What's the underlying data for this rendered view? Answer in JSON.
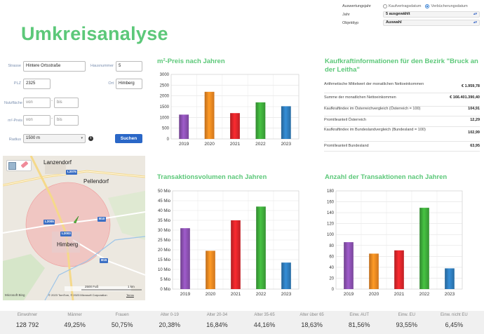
{
  "filters": {
    "auswertungsjahr_label": "Auswertungsjahr",
    "radio_kaufvertragsdatum": "Kaufvertragsdatum",
    "radio_verbuecherungsdatum": "Verbücherungsdatum",
    "jahr_label": "Jahr",
    "jahr_value": "5 ausgewählt",
    "objekttyp_label": "Objekttyp",
    "objekttyp_value": "Auswahl"
  },
  "page_title": "Umkreisanalyse",
  "form": {
    "strasse_label": "Strasse",
    "strasse_value": "Hintere Ortsstraße",
    "hausnummer_label": "Hausnummer",
    "hausnummer_value": "5",
    "plz_label": "PLZ",
    "plz_value": "2325",
    "ort_label": "Ort",
    "ort_value": "Himberg",
    "nutzflaeche_label": "Nutzfläche",
    "m2preis_label": "m²-Preis",
    "von_placeholder": "von",
    "bis_placeholder": "bis",
    "radius_label": "Radius",
    "radius_value": "1500 m",
    "search_label": "Suchen"
  },
  "map": {
    "places": [
      "Lanzendorf",
      "Pellendorf",
      "Himberg"
    ],
    "road_labels": [
      "L2075",
      "L2005",
      "L2003",
      "B10",
      "B15"
    ],
    "scale_left": "2500 Fuß",
    "scale_right": "1 km",
    "copyright": "© 2023 TomTom, © 2023 Microsoft Corporation",
    "terms": "Terms",
    "provider": "Microsoft Bing"
  },
  "titles": {
    "m2_preis": "m²-Preis nach Jahren",
    "kaufkraft": "Kaufkraftinformationen für den Bezirk \"Bruck an der Leitha\"",
    "transaktionsvolumen": "Transaktionsvolumen nach Jahren",
    "anzahl": "Anzahl der Transaktionen nach Jahren"
  },
  "kaufkraft": [
    {
      "label": "Arithmetische Mittelwert der monatlichen Nettoeinkommen",
      "value": "€ 1.959,78"
    },
    {
      "label": "Summe der monatlichen Nettoeinkommen",
      "value": "€ 166.401.390,40"
    },
    {
      "label": "Kaufkraftindex im Österreichvergleich (Österreich = 100)",
      "value": "104,91"
    },
    {
      "label": "Promilleanteil Österreich",
      "value": "12,29"
    },
    {
      "label": "Kaufkraftindex im Bundeslandvergleich (Bundesland = 100)",
      "value": "102,99"
    },
    {
      "label": "Promilleanteil Bundesland",
      "value": "63,95"
    }
  ],
  "colors": {
    "accent": "#5cc879",
    "bar_2019": "#8e52b5",
    "bar_2020": "#f38a22",
    "bar_2021": "#e0262b",
    "bar_2022": "#3fae3c",
    "bar_2023": "#2f7fc0"
  },
  "chart_data": [
    {
      "type": "bar",
      "title": "m²-Preis nach Jahren",
      "categories": [
        "2019",
        "2020",
        "2021",
        "2022",
        "2023"
      ],
      "values": [
        1130,
        2190,
        1200,
        1700,
        1520
      ],
      "ylim": [
        0,
        3000
      ],
      "yticks": [
        "0",
        "500",
        "1000",
        "1500",
        "2000",
        "2500",
        "3000"
      ],
      "grid": true
    },
    {
      "type": "bar",
      "title": "Transaktionsvolumen nach Jahren",
      "categories": [
        "2019",
        "2020",
        "2021",
        "2022",
        "2023"
      ],
      "values": [
        31,
        19.5,
        35,
        42,
        13.5
      ],
      "ylim": [
        0,
        50
      ],
      "yticks": [
        "0 Mio",
        "5 Mio",
        "10 Mio",
        "15 Mio",
        "20 Mio",
        "25 Mio",
        "30 Mio",
        "35 Mio",
        "40 Mio",
        "45 Mio",
        "50 Mio"
      ],
      "grid": true
    },
    {
      "type": "bar",
      "title": "Anzahl der Transaktionen nach Jahren",
      "categories": [
        "2019",
        "2020",
        "2021",
        "2022",
        "2023"
      ],
      "values": [
        86,
        65,
        71,
        149,
        38
      ],
      "ylim": [
        0,
        180
      ],
      "yticks": [
        "0",
        "20",
        "40",
        "60",
        "80",
        "100",
        "120",
        "140",
        "160",
        "180"
      ],
      "grid": true
    }
  ],
  "stats": [
    {
      "label": "Einwohner",
      "value": "128 792"
    },
    {
      "label": "Männer",
      "value": "49,25%"
    },
    {
      "label": "Frauen",
      "value": "50,75%"
    },
    {
      "label": "Alter 0-19",
      "value": "20,38%"
    },
    {
      "label": "Alter 20-34",
      "value": "16,84%"
    },
    {
      "label": "Alter 35-65",
      "value": "44,16%"
    },
    {
      "label": "Alter über 65",
      "value": "18,63%"
    },
    {
      "label": "Einw. AUT",
      "value": "81,56%"
    },
    {
      "label": "Einw. EU",
      "value": "93,55%"
    },
    {
      "label": "Einw. nicht EU",
      "value": "6,45%"
    }
  ]
}
